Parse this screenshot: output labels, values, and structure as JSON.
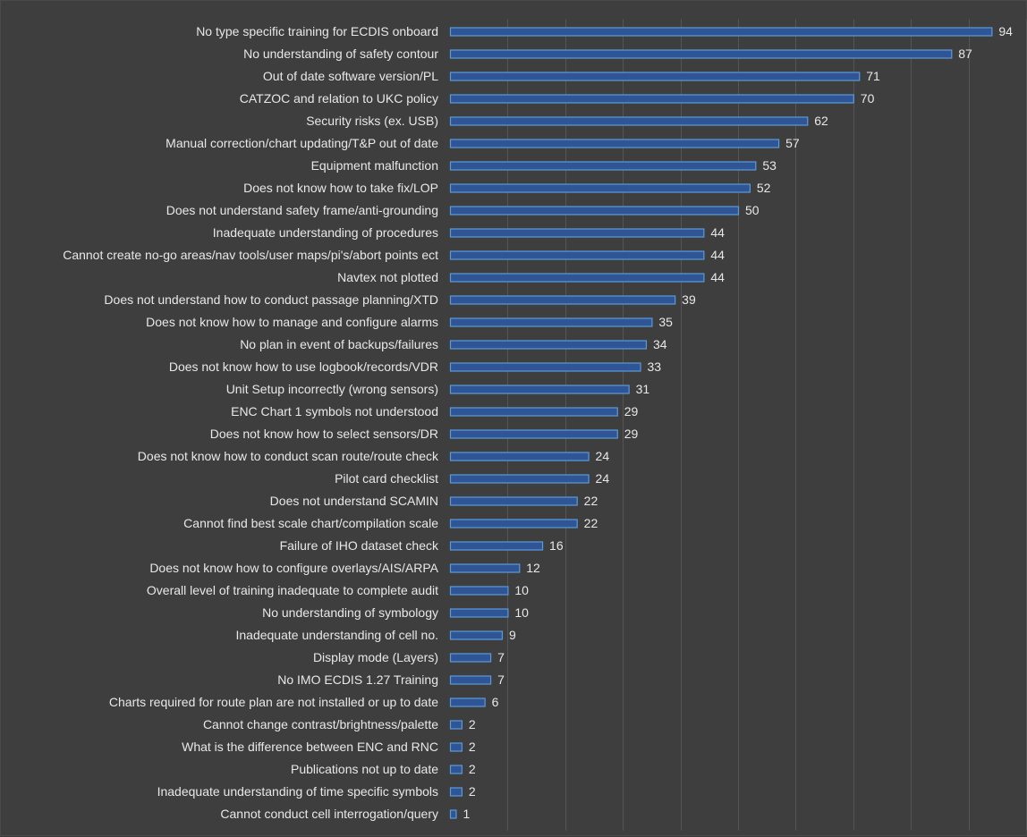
{
  "chart_data": {
    "type": "bar",
    "orientation": "horizontal",
    "categories": [
      "No type specific training for ECDIS onboard",
      "No understanding of safety contour",
      "Out of date software version/PL",
      "CATZOC and relation to UKC policy",
      "Security risks (ex. USB)",
      "Manual correction/chart updating/T&P out of date",
      "Equipment malfunction",
      "Does not know how to take fix/LOP",
      "Does not understand safety frame/anti-grounding",
      "Inadequate understanding of procedures",
      "Cannot create no-go areas/nav tools/user maps/pi's/abort points ect",
      "Navtex not plotted",
      "Does not understand how to conduct passage planning/XTD",
      "Does not know how to manage and configure alarms",
      "No plan in event of backups/failures",
      "Does not know how to use logbook/records/VDR",
      "Unit Setup incorrectly (wrong sensors)",
      "ENC Chart 1 symbols not understood",
      "Does not know how to select sensors/DR",
      "Does not know how to conduct scan route/route check",
      "Pilot card checklist",
      "Does not understand SCAMIN",
      "Cannot find best scale chart/compilation scale",
      "Failure of IHO dataset check",
      "Does not know how to configure overlays/AIS/ARPA",
      "Overall level of training inadequate to complete audit",
      "No understanding of symbology",
      "Inadequate understanding of cell no.",
      "Display mode (Layers)",
      "No IMO ECDIS 1.27 Training",
      "Charts required for route plan are not installed or up to date",
      "Cannot change contrast/brightness/palette",
      "What is the difference between ENC and RNC",
      "Publications not up to date",
      "Inadequate understanding of time specific symbols",
      "Cannot conduct cell interrogation/query"
    ],
    "values": [
      94,
      87,
      71,
      70,
      62,
      57,
      53,
      52,
      50,
      44,
      44,
      44,
      39,
      35,
      34,
      33,
      31,
      29,
      29,
      24,
      24,
      22,
      22,
      16,
      12,
      10,
      10,
      9,
      7,
      7,
      6,
      2,
      2,
      2,
      2,
      1
    ],
    "xlim": [
      0,
      100
    ],
    "grid": true,
    "data_labels": true,
    "colors": {
      "bar_fill": "#2f5597",
      "bar_edge": "#5b9bd5",
      "background": "#3e3e3e",
      "text": "#e8e8e8",
      "grid": "#555555"
    }
  }
}
